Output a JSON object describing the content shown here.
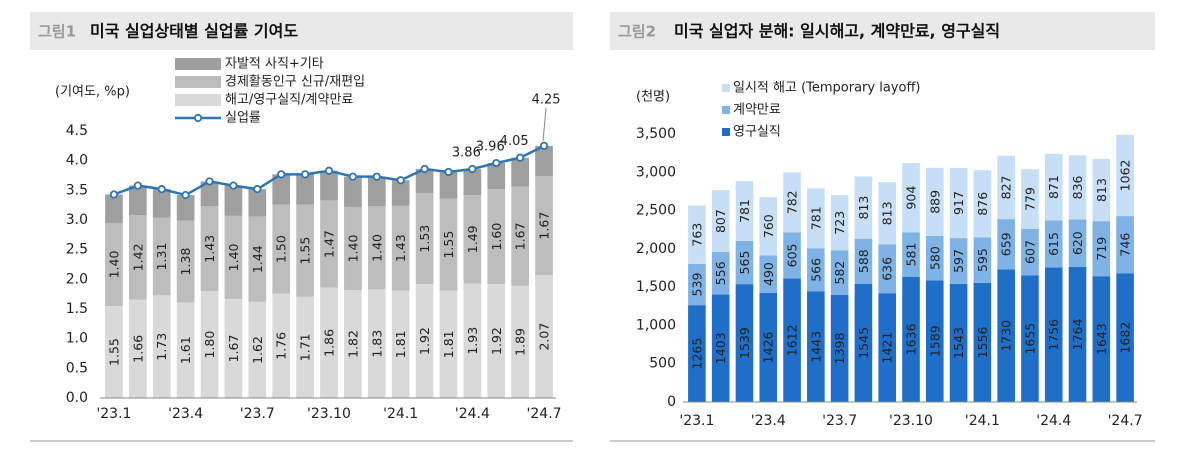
{
  "chart_data": [
    {
      "type": "bar",
      "stacked": true,
      "label": "그림1",
      "title": "미국 실업상태별 실업률 기여도",
      "ylabel": "(기여도, %p)",
      "categories": [
        "'23.1",
        null,
        null,
        "'23.4",
        null,
        null,
        "'23.7",
        null,
        null,
        "'23.10",
        null,
        null,
        "'24.1",
        null,
        null,
        "'24.4",
        null,
        null,
        "'24.7"
      ],
      "ylim": [
        0,
        4.5
      ],
      "yticks": [
        {
          "value": 0,
          "label": "0.0"
        },
        0.5,
        {
          "value": 1,
          "label": "1.0"
        },
        1.5,
        {
          "value": 2,
          "label": "2.0"
        },
        2.5,
        {
          "value": 3,
          "label": "3.0"
        },
        3.5,
        {
          "value": 4,
          "label": "4.0"
        },
        4.5
      ],
      "grid": false,
      "series": [
        {
          "name": "해고/영구실직/계약만료",
          "color": "#d9d9d9",
          "label_color": "#2e75b6",
          "values": [
            1.55,
            1.66,
            1.73,
            1.61,
            1.8,
            1.67,
            1.62,
            1.76,
            1.71,
            1.86,
            1.82,
            1.83,
            1.81,
            1.92,
            1.81,
            1.93,
            1.92,
            1.89,
            2.07
          ],
          "value_labels": [
            "1.55",
            "1.66",
            "1.73",
            "1.61",
            "1.80",
            "1.67",
            "1.62",
            "1.76",
            "1.71",
            "1.86",
            "1.82",
            "1.83",
            "1.81",
            "1.92",
            "1.81",
            "1.93",
            "1.92",
            "1.89",
            "2.07"
          ]
        },
        {
          "name": "경제활동인구 신규/재편입",
          "color": "#bdbdbd",
          "label_color": "#404040",
          "values": [
            1.4,
            1.42,
            1.31,
            1.38,
            1.43,
            1.4,
            1.44,
            1.5,
            1.55,
            1.47,
            1.4,
            1.4,
            1.43,
            1.53,
            1.55,
            1.49,
            1.6,
            1.67,
            1.67
          ],
          "value_labels": [
            "1.40",
            "1.42",
            "1.31",
            "1.38",
            "1.43",
            "1.40",
            "1.44",
            "1.50",
            "1.55",
            "1.47",
            "1.40",
            "1.40",
            "1.43",
            "1.53",
            "1.55",
            "1.49",
            "1.60",
            "1.67",
            "1.67"
          ]
        },
        {
          "name": "자발적 사직+기타",
          "color": "#9f9f9f",
          "values": [
            0.48,
            0.5,
            0.48,
            0.43,
            0.42,
            0.51,
            0.46,
            0.51,
            0.51,
            0.5,
            0.51,
            0.5,
            0.43,
            0.41,
            0.45,
            0.44,
            0.44,
            0.49,
            0.51
          ]
        },
        {
          "name": "실업률",
          "type": "line",
          "color": "#2e75b6",
          "label_color": "#404040",
          "values": [
            3.43,
            3.58,
            3.52,
            3.42,
            3.65,
            3.58,
            3.52,
            3.77,
            3.77,
            3.83,
            3.73,
            3.73,
            3.67,
            3.86,
            3.81,
            3.86,
            3.96,
            4.05,
            4.25
          ],
          "value_labels": [
            null,
            null,
            null,
            null,
            null,
            null,
            null,
            null,
            null,
            null,
            null,
            null,
            null,
            null,
            null,
            "3.86",
            "3.96",
            "4.05",
            "4.25"
          ]
        }
      ]
    },
    {
      "type": "bar",
      "stacked": true,
      "label": "그림2",
      "title": "미국 실업자 분해: 일시해고, 계약만료, 영구실직",
      "ylabel": "(천명)",
      "categories": [
        "'23.1",
        null,
        null,
        "'23.4",
        null,
        null,
        "'23.7",
        null,
        null,
        "'23.10",
        null,
        null,
        "'24.1",
        null,
        null,
        "'24.4",
        null,
        null,
        "'24.7"
      ],
      "ylim": [
        0,
        3500
      ],
      "yticks": [
        0,
        500,
        {
          "value": 1000,
          "label": "1,000"
        },
        {
          "value": 1500,
          "label": "1,500"
        },
        {
          "value": 2000,
          "label": "2,000"
        },
        {
          "value": 2500,
          "label": "2,500"
        },
        {
          "value": 3000,
          "label": "3,000"
        },
        {
          "value": 3500,
          "label": "3,500"
        }
      ],
      "grid": false,
      "series": [
        {
          "name": "영구실직",
          "color": "#1f6fc9",
          "label_color": "#ffffff",
          "values": [
            1265,
            1403,
            1539,
            1426,
            1612,
            1443,
            1398,
            1545,
            1421,
            1636,
            1589,
            1543,
            1556,
            1730,
            1655,
            1756,
            1764,
            1643,
            1682
          ]
        },
        {
          "name": "계약만료",
          "color": "#7fb3e6",
          "label_color": "#2f5f9a",
          "values": [
            539,
            556,
            565,
            490,
            605,
            566,
            582,
            588,
            636,
            581,
            580,
            597,
            595,
            659,
            607,
            615,
            620,
            719,
            746
          ]
        },
        {
          "name": "일시적 해고 (Temporary layoff)",
          "color": "#c6dff6",
          "label_color": "#2f5f9a",
          "values": [
            763,
            807,
            781,
            760,
            782,
            781,
            723,
            813,
            813,
            904,
            889,
            917,
            876,
            827,
            779,
            871,
            836,
            813,
            1062
          ]
        }
      ]
    }
  ]
}
